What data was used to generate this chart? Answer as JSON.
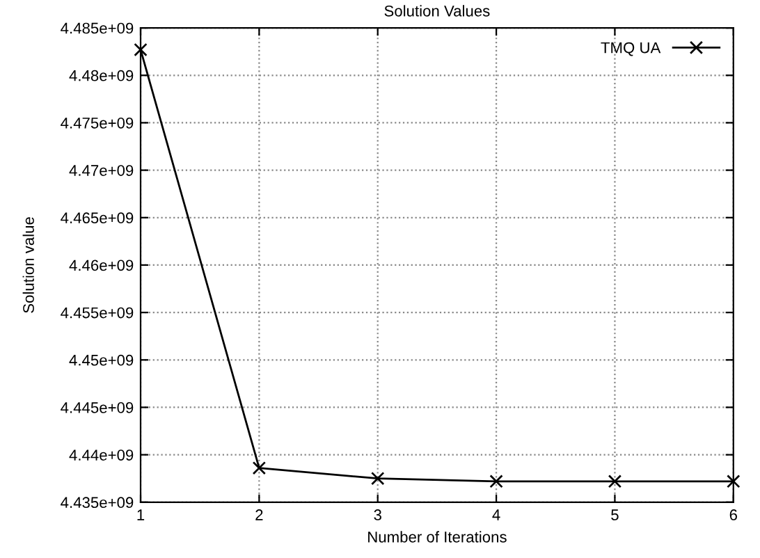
{
  "chart_data": {
    "type": "line",
    "title": "Solution Values",
    "xlabel": "Number of Iterations",
    "ylabel": "Solution value",
    "x": [
      1,
      2,
      3,
      4,
      5,
      6
    ],
    "series": [
      {
        "name": "TMQ UA",
        "color": "#000000",
        "values": [
          4482700000,
          4438600000,
          4437500000,
          4437200000,
          4437200000,
          4437200000
        ]
      }
    ],
    "xlim": [
      1,
      6
    ],
    "xticks": [
      1,
      2,
      3,
      4,
      5,
      6
    ],
    "ylim": [
      4435000000,
      4485000000
    ],
    "yticks": [
      {
        "value": 4435000000,
        "label": "4.435e+09"
      },
      {
        "value": 4440000000,
        "label": "4.44e+09"
      },
      {
        "value": 4445000000,
        "label": "4.445e+09"
      },
      {
        "value": 4450000000,
        "label": "4.45e+09"
      },
      {
        "value": 4455000000,
        "label": "4.455e+09"
      },
      {
        "value": 4460000000,
        "label": "4.46e+09"
      },
      {
        "value": 4465000000,
        "label": "4.465e+09"
      },
      {
        "value": 4470000000,
        "label": "4.47e+09"
      },
      {
        "value": 4475000000,
        "label": "4.475e+09"
      },
      {
        "value": 4480000000,
        "label": "4.48e+09"
      },
      {
        "value": 4485000000,
        "label": "4.485e+09"
      }
    ],
    "grid": true,
    "legend": "top right",
    "marker": "cross",
    "line_style": "solid"
  }
}
